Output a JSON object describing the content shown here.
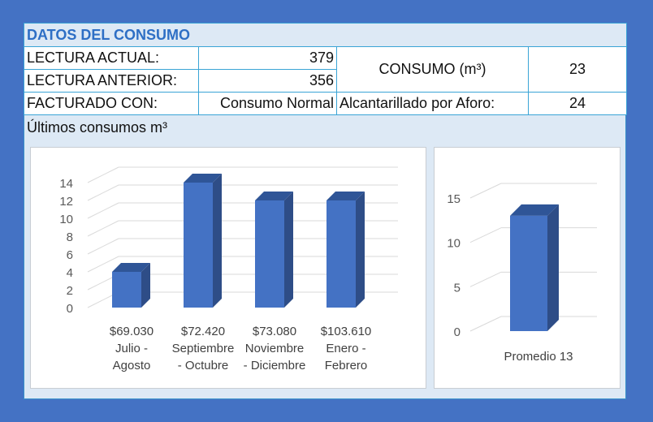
{
  "table": {
    "title": "DATOS DEL CONSUMO",
    "lectura_actual_label": "LECTURA ACTUAL:",
    "lectura_actual_value": "379",
    "lectura_anterior_label": "LECTURA ANTERIOR:",
    "lectura_anterior_value": "356",
    "consumo_label": "CONSUMO (m³)",
    "consumo_value": "23",
    "facturado_label": "FACTURADO CON:",
    "facturado_value": "Consumo Normal",
    "alcantarillado_label": "Alcantarillado por Aforo:",
    "alcantarillado_value": "24"
  },
  "subtitle": "Últimos consumos m³",
  "colors": {
    "bar_front": "#4472c4",
    "bar_side": "#2e4d87",
    "bar_top": "#2f5597"
  },
  "chart_data": [
    {
      "type": "bar",
      "categories": [
        [
          "$69.030",
          "Julio -",
          "Agosto"
        ],
        [
          "$72.420",
          "Septiembre",
          "- Octubre"
        ],
        [
          "$73.080",
          "Noviembre",
          "- Diciembre"
        ],
        [
          "$103.610",
          "Enero -",
          "Febrero"
        ]
      ],
      "values": [
        4,
        14,
        12,
        12
      ],
      "ylim": [
        0,
        14
      ],
      "yticks": [
        "0",
        "2",
        "4",
        "6",
        "8",
        "10",
        "12",
        "14"
      ],
      "grid": true
    },
    {
      "type": "bar",
      "categories": [
        [
          "Promedio 13"
        ]
      ],
      "values": [
        13
      ],
      "ylim": [
        0,
        15
      ],
      "yticks": [
        "0",
        "5",
        "10",
        "15"
      ],
      "grid": true
    }
  ]
}
